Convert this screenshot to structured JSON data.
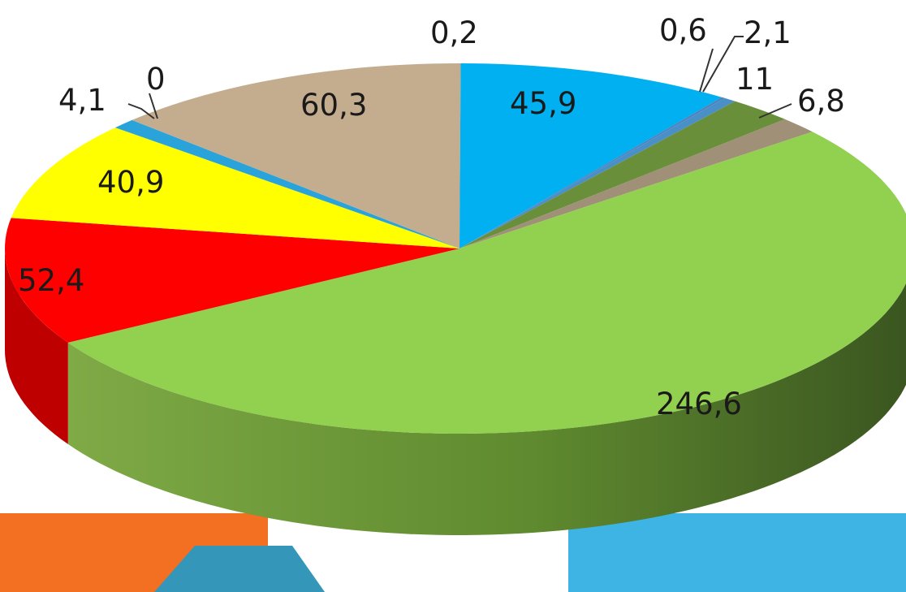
{
  "chart_data": {
    "type": "pie",
    "style": "3d-exploded-tilted",
    "title": "",
    "slices": [
      {
        "label": "0,2",
        "value": 0.2,
        "color": "#c4ad8e"
      },
      {
        "label": "45,9",
        "value": 45.9,
        "color": "#00b0f0"
      },
      {
        "label": "0,6",
        "value": 0.6,
        "color": "#4f81bd"
      },
      {
        "label": "2,1",
        "value": 2.1,
        "color": "#4a90c8"
      },
      {
        "label": "11",
        "value": 11,
        "color": "#6a8f3b"
      },
      {
        "label": "6,8",
        "value": 6.8,
        "color": "#a09078"
      },
      {
        "label": "246,6",
        "value": 246.6,
        "color": "#92d050"
      },
      {
        "label": "52,4",
        "value": 52.4,
        "color": "#ff0000"
      },
      {
        "label": "40,9",
        "value": 40.9,
        "color": "#ffff00"
      },
      {
        "label": "4,1",
        "value": 4.1,
        "color": "#29a3d9"
      },
      {
        "label": "0",
        "value": 0,
        "color": "#1f8fc2"
      },
      {
        "label": "60,3",
        "value": 60.3,
        "color": "#c4ad8e"
      }
    ]
  },
  "decor": {
    "band_orange": "#f36f21",
    "band_blue": "#3db4e4",
    "band_dark_blue": "#3497b9"
  }
}
